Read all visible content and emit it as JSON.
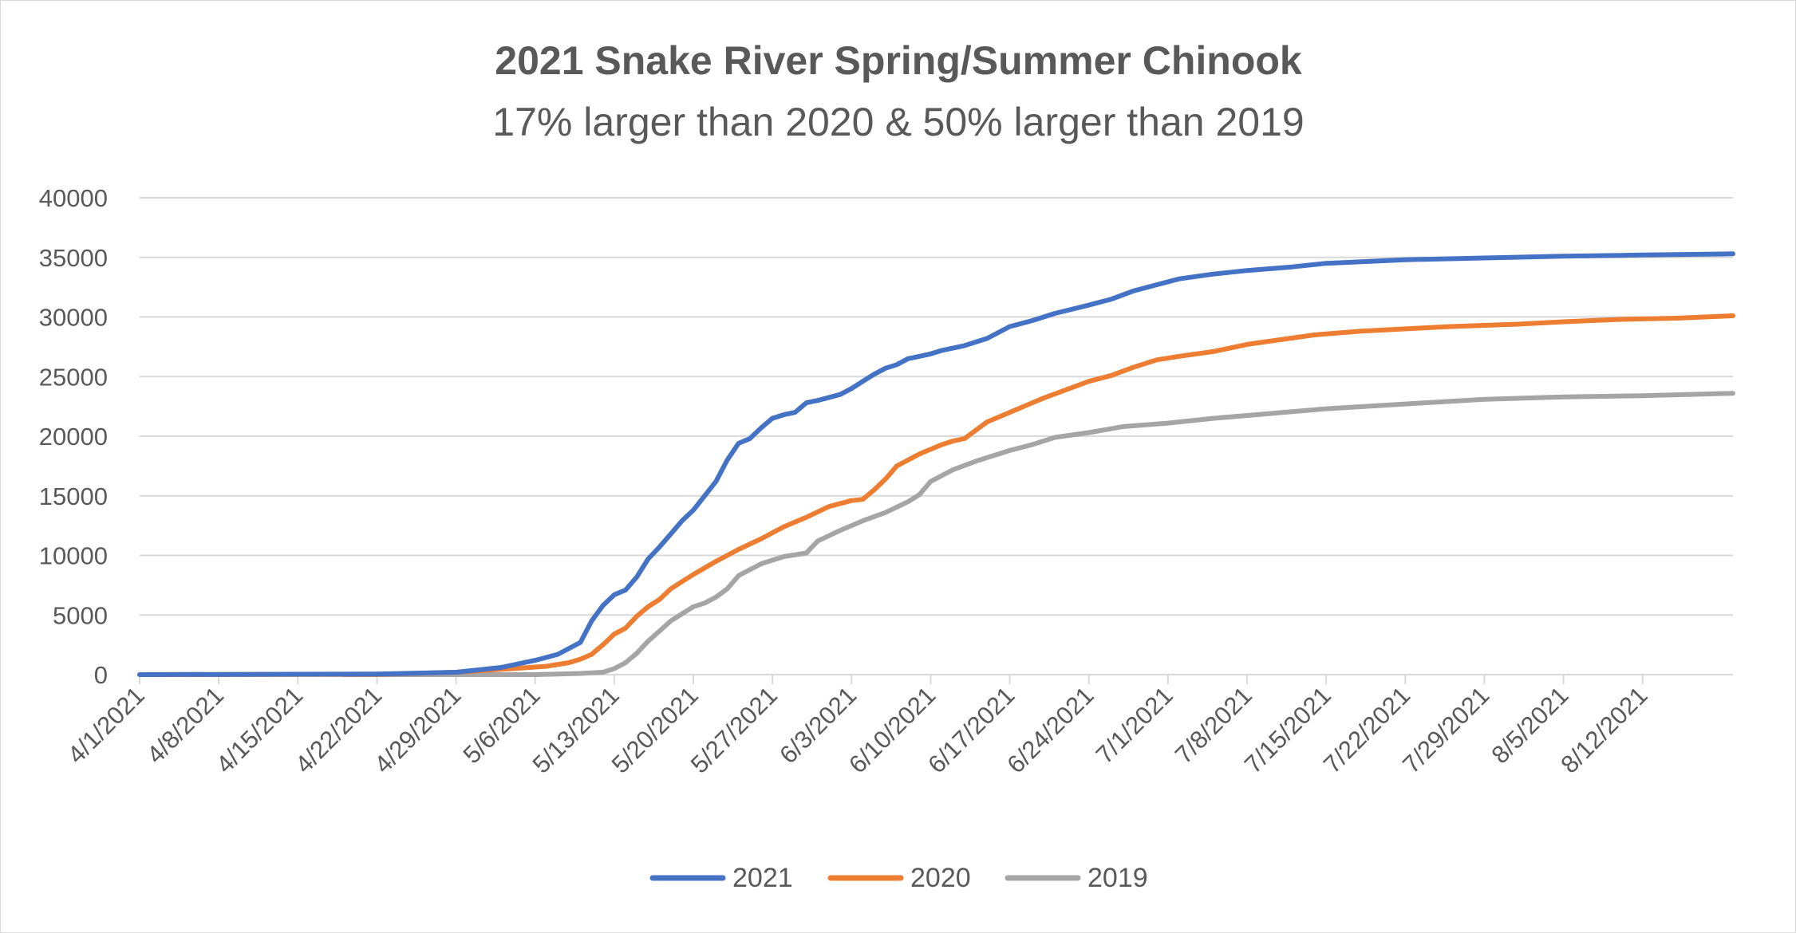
{
  "chart_data": {
    "type": "line",
    "title": "2021 Snake River Spring/Summer Chinook",
    "subtitle": "17% larger than 2020 & 50% larger than 2019",
    "xlabel": "",
    "ylabel": "",
    "ylim": [
      0,
      40000
    ],
    "yticks": [
      "0",
      "5000",
      "10000",
      "15000",
      "20000",
      "25000",
      "30000",
      "35000",
      "40000"
    ],
    "xticks": [
      "4/1/2021",
      "4/8/2021",
      "4/15/2021",
      "4/22/2021",
      "4/29/2021",
      "5/6/2021",
      "5/13/2021",
      "5/20/2021",
      "5/27/2021",
      "6/3/2021",
      "6/10/2021",
      "6/17/2021",
      "6/24/2021",
      "7/1/2021",
      "7/8/2021",
      "7/15/2021",
      "7/22/2021",
      "7/29/2021",
      "8/5/2021",
      "8/12/2021"
    ],
    "x_start": "4/1/2021",
    "x_end": "8/20/2021",
    "grid": true,
    "legend_position": "bottom",
    "series": [
      {
        "name": "2021",
        "color": "#4472c4",
        "points": [
          [
            "4/1/2021",
            0
          ],
          [
            "4/22/2021",
            50
          ],
          [
            "4/29/2021",
            200
          ],
          [
            "5/3/2021",
            600
          ],
          [
            "5/6/2021",
            1200
          ],
          [
            "5/8/2021",
            1700
          ],
          [
            "5/10/2021",
            2700
          ],
          [
            "5/11/2021",
            4500
          ],
          [
            "5/12/2021",
            5800
          ],
          [
            "5/13/2021",
            6700
          ],
          [
            "5/14/2021",
            7100
          ],
          [
            "5/15/2021",
            8200
          ],
          [
            "5/16/2021",
            9700
          ],
          [
            "5/17/2021",
            10700
          ],
          [
            "5/18/2021",
            11800
          ],
          [
            "5/19/2021",
            12900
          ],
          [
            "5/20/2021",
            13800
          ],
          [
            "5/21/2021",
            15000
          ],
          [
            "5/22/2021",
            16200
          ],
          [
            "5/23/2021",
            18000
          ],
          [
            "5/24/2021",
            19400
          ],
          [
            "5/25/2021",
            19800
          ],
          [
            "5/26/2021",
            20700
          ],
          [
            "5/27/2021",
            21500
          ],
          [
            "5/28/2021",
            21800
          ],
          [
            "5/29/2021",
            22000
          ],
          [
            "5/30/2021",
            22800
          ],
          [
            "5/31/2021",
            23000
          ],
          [
            "6/2/2021",
            23500
          ],
          [
            "6/3/2021",
            24000
          ],
          [
            "6/4/2021",
            24600
          ],
          [
            "6/5/2021",
            25200
          ],
          [
            "6/6/2021",
            25700
          ],
          [
            "6/7/2021",
            26000
          ],
          [
            "6/8/2021",
            26500
          ],
          [
            "6/10/2021",
            26900
          ],
          [
            "6/11/2021",
            27200
          ],
          [
            "6/13/2021",
            27600
          ],
          [
            "6/15/2021",
            28200
          ],
          [
            "6/17/2021",
            29200
          ],
          [
            "6/19/2021",
            29700
          ],
          [
            "6/21/2021",
            30300
          ],
          [
            "6/24/2021",
            31000
          ],
          [
            "6/26/2021",
            31500
          ],
          [
            "6/28/2021",
            32200
          ],
          [
            "6/30/2021",
            32700
          ],
          [
            "7/2/2021",
            33200
          ],
          [
            "7/5/2021",
            33600
          ],
          [
            "7/8/2021",
            33900
          ],
          [
            "7/12/2021",
            34200
          ],
          [
            "7/15/2021",
            34500
          ],
          [
            "7/22/2021",
            34800
          ],
          [
            "7/29/2021",
            34950
          ],
          [
            "8/5/2021",
            35100
          ],
          [
            "8/12/2021",
            35200
          ],
          [
            "8/20/2021",
            35300
          ]
        ]
      },
      {
        "name": "2020",
        "color": "#ed7d31",
        "points": [
          [
            "4/1/2021",
            0
          ],
          [
            "4/22/2021",
            20
          ],
          [
            "4/29/2021",
            200
          ],
          [
            "5/4/2021",
            500
          ],
          [
            "5/7/2021",
            700
          ],
          [
            "5/9/2021",
            1000
          ],
          [
            "5/10/2021",
            1300
          ],
          [
            "5/11/2021",
            1700
          ],
          [
            "5/12/2021",
            2500
          ],
          [
            "5/13/2021",
            3400
          ],
          [
            "5/14/2021",
            3900
          ],
          [
            "5/15/2021",
            4900
          ],
          [
            "5/16/2021",
            5700
          ],
          [
            "5/17/2021",
            6300
          ],
          [
            "5/18/2021",
            7200
          ],
          [
            "5/19/2021",
            7800
          ],
          [
            "5/20/2021",
            8400
          ],
          [
            "5/22/2021",
            9500
          ],
          [
            "5/24/2021",
            10500
          ],
          [
            "5/26/2021",
            11400
          ],
          [
            "5/28/2021",
            12400
          ],
          [
            "5/30/2021",
            13200
          ],
          [
            "6/1/2021",
            14100
          ],
          [
            "6/3/2021",
            14600
          ],
          [
            "6/4/2021",
            14700
          ],
          [
            "6/5/2021",
            15500
          ],
          [
            "6/6/2021",
            16400
          ],
          [
            "6/7/2021",
            17500
          ],
          [
            "6/9/2021",
            18500
          ],
          [
            "6/10/2021",
            18900
          ],
          [
            "6/11/2021",
            19300
          ],
          [
            "6/12/2021",
            19600
          ],
          [
            "6/13/2021",
            19800
          ],
          [
            "6/14/2021",
            20500
          ],
          [
            "6/15/2021",
            21200
          ],
          [
            "6/17/2021",
            22000
          ],
          [
            "6/18/2021",
            22400
          ],
          [
            "6/20/2021",
            23200
          ],
          [
            "6/22/2021",
            23900
          ],
          [
            "6/24/2021",
            24600
          ],
          [
            "6/26/2021",
            25100
          ],
          [
            "6/28/2021",
            25800
          ],
          [
            "6/30/2021",
            26400
          ],
          [
            "7/2/2021",
            26700
          ],
          [
            "7/5/2021",
            27100
          ],
          [
            "7/8/2021",
            27700
          ],
          [
            "7/11/2021",
            28100
          ],
          [
            "7/14/2021",
            28500
          ],
          [
            "7/18/2021",
            28800
          ],
          [
            "7/22/2021",
            29000
          ],
          [
            "7/26/2021",
            29200
          ],
          [
            "7/29/2021",
            29300
          ],
          [
            "8/1/2021",
            29400
          ],
          [
            "8/5/2021",
            29600
          ],
          [
            "8/10/2021",
            29800
          ],
          [
            "8/15/2021",
            29900
          ],
          [
            "8/20/2021",
            30100
          ]
        ]
      },
      {
        "name": "2019",
        "color": "#a5a5a5",
        "points": [
          [
            "4/19/2021",
            0
          ],
          [
            "5/6/2021",
            0
          ],
          [
            "5/10/2021",
            100
          ],
          [
            "5/12/2021",
            200
          ],
          [
            "5/13/2021",
            500
          ],
          [
            "5/14/2021",
            1000
          ],
          [
            "5/15/2021",
            1800
          ],
          [
            "5/16/2021",
            2800
          ],
          [
            "5/18/2021",
            4500
          ],
          [
            "5/20/2021",
            5700
          ],
          [
            "5/21/2021",
            6000
          ],
          [
            "5/22/2021",
            6500
          ],
          [
            "5/23/2021",
            7200
          ],
          [
            "5/24/2021",
            8300
          ],
          [
            "5/26/2021",
            9300
          ],
          [
            "5/28/2021",
            9900
          ],
          [
            "5/30/2021",
            10200
          ],
          [
            "5/31/2021",
            11200
          ],
          [
            "6/2/2021",
            12100
          ],
          [
            "6/4/2021",
            12900
          ],
          [
            "6/6/2021",
            13600
          ],
          [
            "6/8/2021",
            14500
          ],
          [
            "6/9/2021",
            15100
          ],
          [
            "6/10/2021",
            16200
          ],
          [
            "6/12/2021",
            17200
          ],
          [
            "6/14/2021",
            17900
          ],
          [
            "6/17/2021",
            18800
          ],
          [
            "6/19/2021",
            19300
          ],
          [
            "6/21/2021",
            19900
          ],
          [
            "6/24/2021",
            20300
          ],
          [
            "6/27/2021",
            20800
          ],
          [
            "7/1/2021",
            21100
          ],
          [
            "7/5/2021",
            21500
          ],
          [
            "7/10/2021",
            21900
          ],
          [
            "7/15/2021",
            22300
          ],
          [
            "7/22/2021",
            22700
          ],
          [
            "7/29/2021",
            23100
          ],
          [
            "8/5/2021",
            23300
          ],
          [
            "8/12/2021",
            23400
          ],
          [
            "8/20/2021",
            23600
          ]
        ]
      }
    ]
  }
}
